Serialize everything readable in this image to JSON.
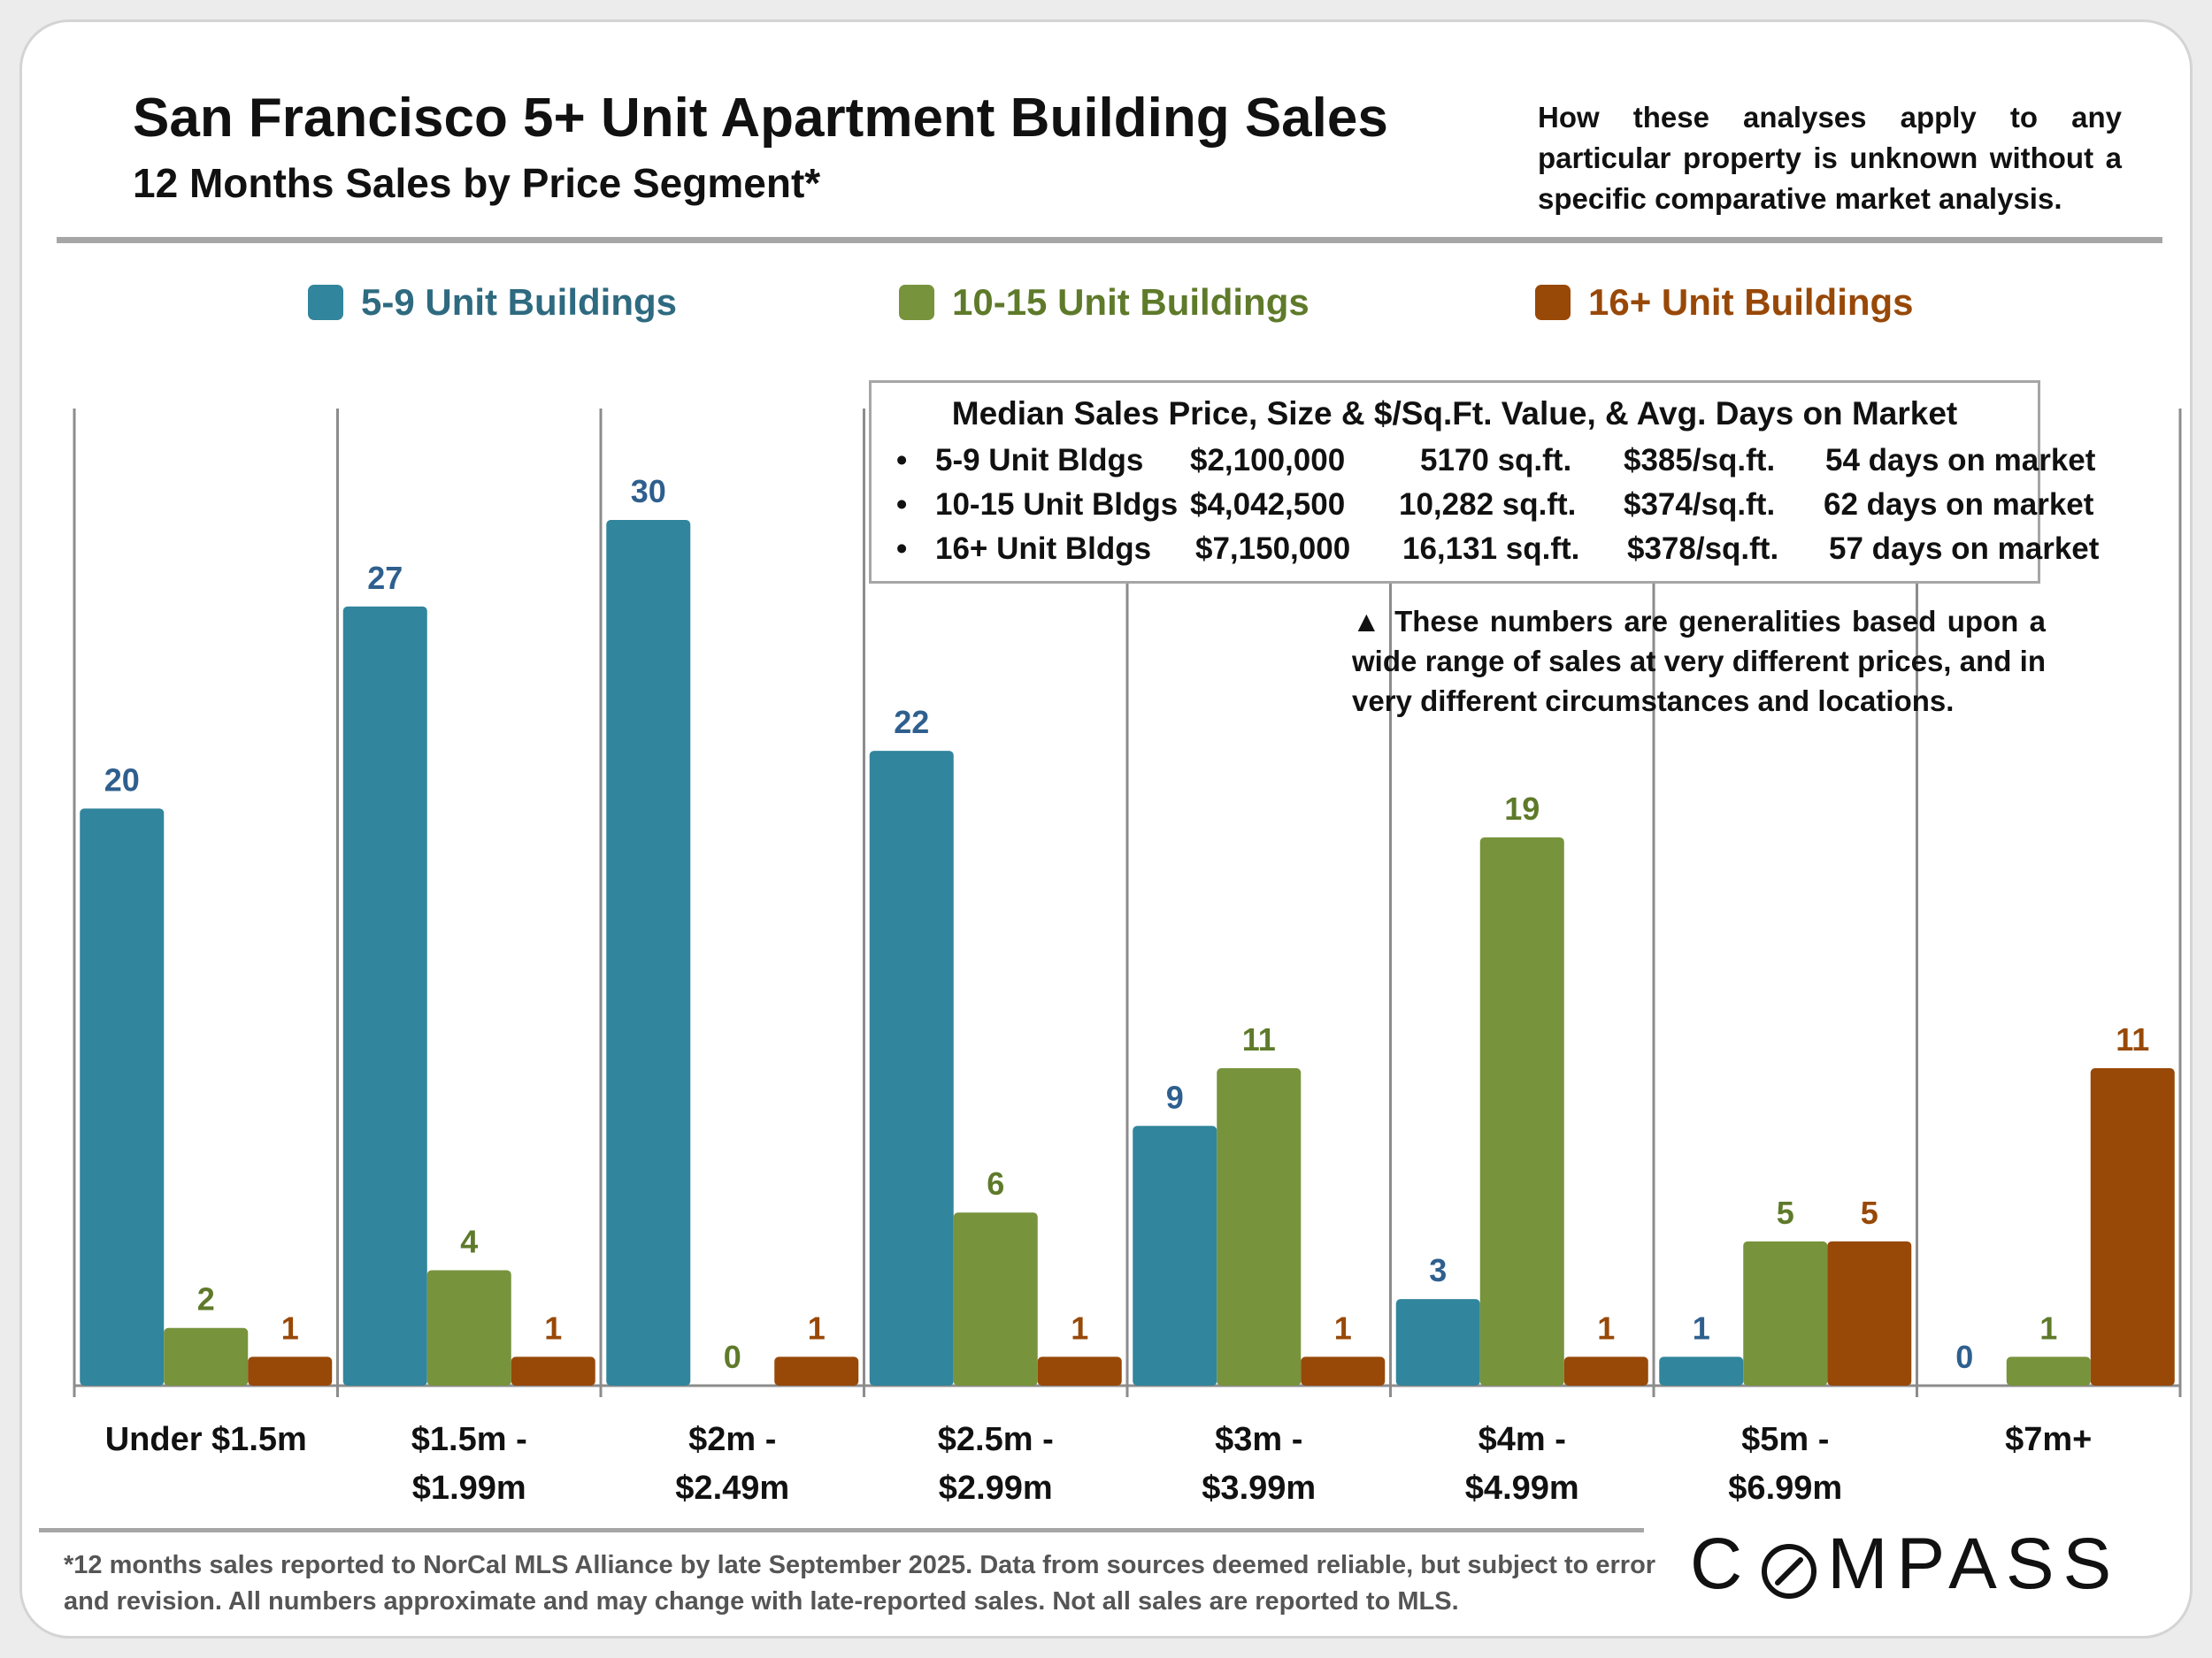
{
  "header": {
    "title": "San Francisco 5+ Unit Apartment Building Sales",
    "subtitle": "12 Months Sales by Price Segment*",
    "disclaimer": "How these analyses apply to any particular property is unknown without a specific comparative market analysis."
  },
  "legend": [
    {
      "label": "5-9 Unit Buildings",
      "color": "#31859c"
    },
    {
      "label": "10-15 Unit Buildings",
      "color": "#77933c"
    },
    {
      "label": "16+ Unit Buildings",
      "color": "#984807"
    }
  ],
  "stats": {
    "heading": "Median Sales Price, Size & $/Sq.Ft. Value, & Avg. Days on Market",
    "rows": [
      {
        "bullet": "•",
        "name": "5-9 Unit Bldgs",
        "price": "$2,100,000",
        "size": "5170 sq.ft.",
        "ppsf": "$385/sq.ft.",
        "dom": "54 days on market"
      },
      {
        "bullet": "•",
        "name": "10-15 Unit Bldgs",
        "price": "$4,042,500",
        "size": "10,282 sq.ft.",
        "ppsf": "$374/sq.ft.",
        "dom": "62 days on market"
      },
      {
        "bullet": "•",
        "name": "16+ Unit Bldgs",
        "price": "$7,150,000",
        "size": "16,131 sq.ft.",
        "ppsf": "$378/sq.ft.",
        "dom": "57 days on market"
      }
    ]
  },
  "note": "▲ These numbers are generalities based upon a wide range of sales at very different prices, and in very different circumstances and locations.",
  "footnote": "*12 months sales reported to NorCal MLS Alliance by late September 2025. Data from sources deemed reliable, but subject to error and revision. All numbers approximate and may change with late-reported sales. Not all sales are reported to MLS.",
  "logo": {
    "before": "C",
    "after": "MPASS"
  },
  "chart_data": {
    "type": "bar",
    "title": "San Francisco 5+ Unit Apartment Building Sales",
    "subtitle": "12 Months Sales by Price Segment*",
    "xlabel": "",
    "ylabel": "",
    "ylim": [
      0,
      30
    ],
    "grid": false,
    "legend_position": "top",
    "categories": [
      [
        "Under $1.5m"
      ],
      [
        "$1.5m -",
        "$1.99m"
      ],
      [
        "$2m -",
        "$2.49m"
      ],
      [
        "$2.5m -",
        "$2.99m"
      ],
      [
        "$3m -",
        "$3.99m"
      ],
      [
        "$4m -",
        "$4.99m"
      ],
      [
        "$5m -",
        "$6.99m"
      ],
      [
        "$7m+"
      ]
    ],
    "series": [
      {
        "name": "5-9 Unit Buildings",
        "color": "#31859c",
        "label_color": "#2e5f8e",
        "values": [
          20,
          27,
          30,
          22,
          9,
          3,
          1,
          0
        ]
      },
      {
        "name": "10-15 Unit Buildings",
        "color": "#77933c",
        "label_color": "#5e7a2a",
        "values": [
          2,
          4,
          0,
          6,
          11,
          19,
          5,
          1
        ]
      },
      {
        "name": "16+ Unit Buildings",
        "color": "#984807",
        "label_color": "#984807",
        "values": [
          1,
          1,
          1,
          1,
          1,
          1,
          5,
          11
        ]
      }
    ]
  }
}
